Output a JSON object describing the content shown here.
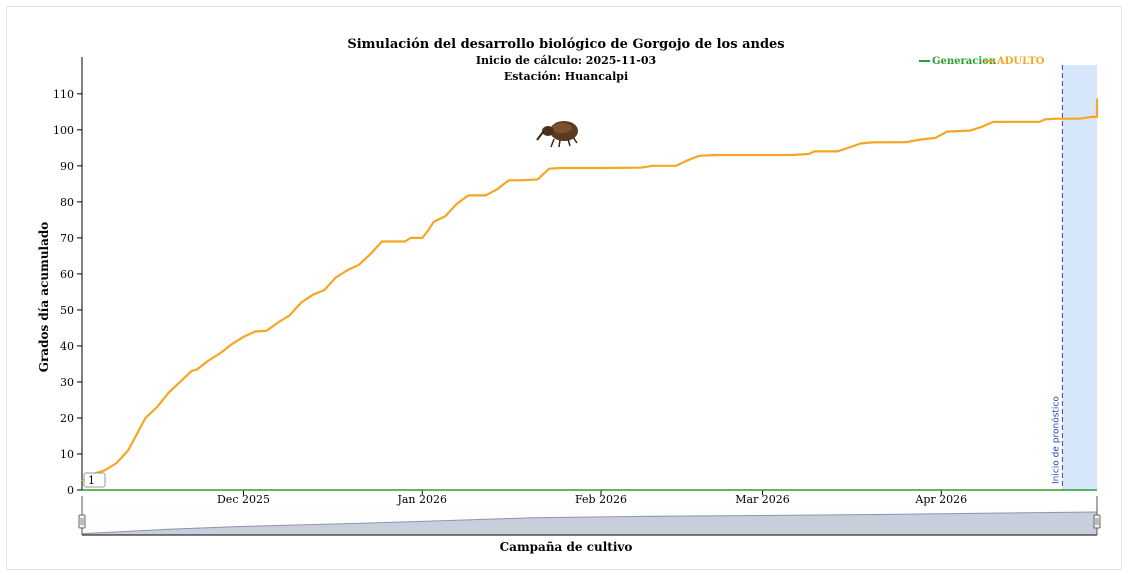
{
  "chart_data": {
    "type": "line",
    "title": "Simulación del desarrollo biológico de Gorgojo de los andes",
    "subtitle_start": "Inicio de cálculo: 2025-11-03",
    "subtitle_station": "Estación: Huancalpi",
    "xlabel": "Campaña de cultivo",
    "ylabel": "Grados día acumulado",
    "x_start": "2025-11-03",
    "x_end": "2026-04-28",
    "ylim": [
      0,
      118
    ],
    "y_ticks": [
      0,
      10,
      20,
      30,
      40,
      50,
      60,
      70,
      80,
      90,
      100,
      110
    ],
    "x_ticks": [
      {
        "date": "2025-12-01",
        "label": "Dec 2025"
      },
      {
        "date": "2026-01-01",
        "label": "Jan 2026"
      },
      {
        "date": "2026-02-01",
        "label": "Feb 2026"
      },
      {
        "date": "2026-03-01",
        "label": "Mar 2026"
      },
      {
        "date": "2026-04-01",
        "label": "Apr 2026"
      }
    ],
    "legend_position": "top-right",
    "grid": false,
    "forecast_start": "2026-04-22",
    "forecast_label": "Inicio de pronóstico",
    "marker_label": "1",
    "series": [
      {
        "name": "Generacion",
        "color": "#2e9e2e",
        "points": [
          [
            "2025-11-03",
            0
          ],
          [
            "2026-04-28",
            0
          ]
        ]
      },
      {
        "name": "ADULTO",
        "color": "#f5a623",
        "points": [
          [
            "2025-11-03",
            2.5
          ],
          [
            "2025-11-05",
            4.5
          ],
          [
            "2025-11-07",
            5.5
          ],
          [
            "2025-11-09",
            7.5
          ],
          [
            "2025-11-11",
            11
          ],
          [
            "2025-11-13",
            17
          ],
          [
            "2025-11-14",
            20
          ],
          [
            "2025-11-16",
            23
          ],
          [
            "2025-11-18",
            27
          ],
          [
            "2025-11-20",
            30
          ],
          [
            "2025-11-22",
            33
          ],
          [
            "2025-11-23",
            33.5
          ],
          [
            "2025-11-25",
            36
          ],
          [
            "2025-11-27",
            38
          ],
          [
            "2025-11-29",
            40.5
          ],
          [
            "2025-12-01",
            42.5
          ],
          [
            "2025-12-03",
            44
          ],
          [
            "2025-12-05",
            44.2
          ],
          [
            "2025-12-07",
            46.5
          ],
          [
            "2025-12-09",
            48.5
          ],
          [
            "2025-12-11",
            52
          ],
          [
            "2025-12-13",
            54.2
          ],
          [
            "2025-12-15",
            55.5
          ],
          [
            "2025-12-17",
            59
          ],
          [
            "2025-12-19",
            61
          ],
          [
            "2025-12-21",
            62.5
          ],
          [
            "2025-12-23",
            65.5
          ],
          [
            "2025-12-25",
            69
          ],
          [
            "2025-12-27",
            69
          ],
          [
            "2025-12-29",
            69
          ],
          [
            "2025-12-30",
            70
          ],
          [
            "2026-01-01",
            70
          ],
          [
            "2026-01-02",
            72
          ],
          [
            "2026-01-03",
            74.5
          ],
          [
            "2026-01-05",
            76
          ],
          [
            "2026-01-07",
            79.5
          ],
          [
            "2026-01-09",
            81.8
          ],
          [
            "2026-01-12",
            81.8
          ],
          [
            "2026-01-14",
            83.5
          ],
          [
            "2026-01-16",
            86
          ],
          [
            "2026-01-18",
            86
          ],
          [
            "2026-01-21",
            86.2
          ],
          [
            "2026-01-23",
            89.2
          ],
          [
            "2026-01-25",
            89.4
          ],
          [
            "2026-02-01",
            89.4
          ],
          [
            "2026-02-08",
            89.5
          ],
          [
            "2026-02-10",
            90
          ],
          [
            "2026-02-14",
            90
          ],
          [
            "2026-02-16",
            91.5
          ],
          [
            "2026-02-18",
            92.8
          ],
          [
            "2026-02-21",
            93
          ],
          [
            "2026-03-06",
            93
          ],
          [
            "2026-03-09",
            93.3
          ],
          [
            "2026-03-10",
            94
          ],
          [
            "2026-03-14",
            94
          ],
          [
            "2026-03-18",
            96.2
          ],
          [
            "2026-03-20",
            96.5
          ],
          [
            "2026-03-26",
            96.6
          ],
          [
            "2026-03-28",
            97.2
          ],
          [
            "2026-03-31",
            97.8
          ],
          [
            "2026-04-02",
            99.5
          ],
          [
            "2026-04-06",
            99.8
          ],
          [
            "2026-04-08",
            100.8
          ],
          [
            "2026-04-10",
            102.2
          ],
          [
            "2026-04-18",
            102.2
          ],
          [
            "2026-04-19",
            102.9
          ],
          [
            "2026-04-21",
            103.1
          ],
          [
            "2026-04-25",
            103.1
          ],
          [
            "2026-04-27",
            103.6
          ],
          [
            "2026-05-11",
            103.6
          ],
          [
            "2026-05-12",
            104.6
          ],
          [
            "2026-05-14",
            104.7
          ],
          [
            "2026-05-15",
            104.9
          ],
          [
            "2026-05-19",
            105
          ],
          [
            "2026-05-20",
            106
          ],
          [
            "2026-05-21",
            108
          ],
          [
            "2026-05-22",
            108.7
          ],
          [
            "2026-05-27",
            108.7
          ]
        ]
      }
    ],
    "navigator": {
      "points": [
        [
          "2025-11-03",
          0.5
        ],
        [
          "2025-11-18",
          2
        ],
        [
          "2025-12-01",
          3
        ],
        [
          "2025-12-20",
          4
        ],
        [
          "2026-01-05",
          5
        ],
        [
          "2026-01-20",
          6
        ],
        [
          "2026-02-10",
          6.5
        ],
        [
          "2026-03-01",
          6.8
        ],
        [
          "2026-03-25",
          7.2
        ],
        [
          "2026-04-10",
          7.6
        ],
        [
          "2026-04-28",
          8
        ]
      ]
    }
  }
}
